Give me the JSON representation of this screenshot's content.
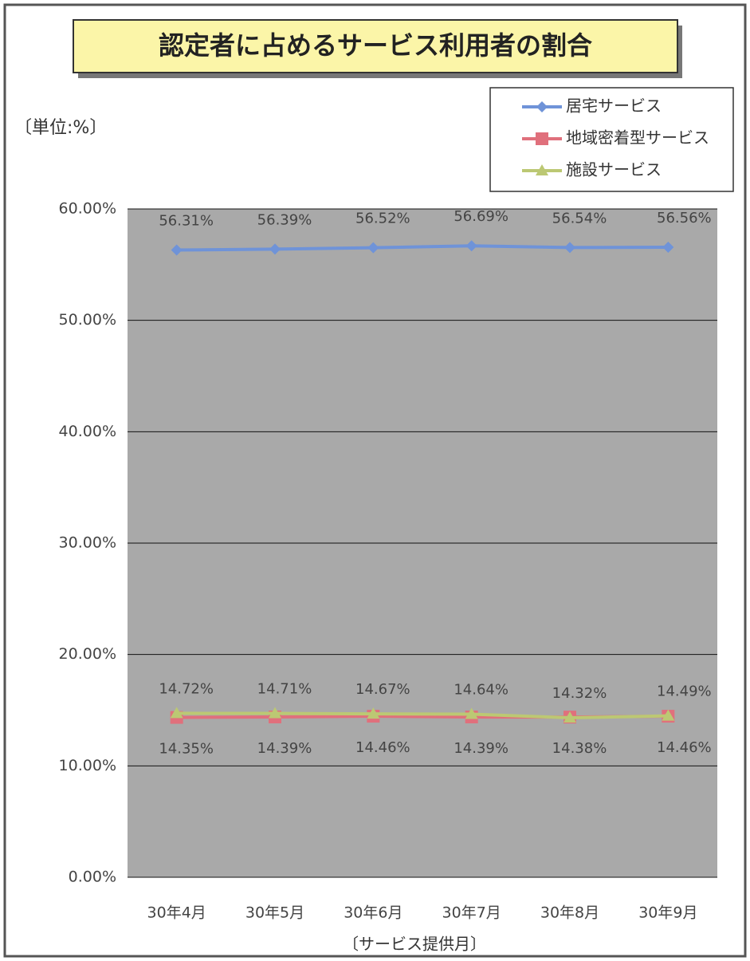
{
  "chart_data": {
    "type": "line",
    "title": "認定者に占めるサービス利用者の割合",
    "unit_label": "〔単位:%〕",
    "x_label": "〔サービス提供月〕",
    "categories": [
      "30年4月",
      "30年5月",
      "30年6月",
      "30年7月",
      "30年8月",
      "30年9月"
    ],
    "series": [
      {
        "name": "居宅サービス",
        "color": "#6f93d8",
        "marker": "diamond",
        "values": [
          56.31,
          56.39,
          56.52,
          56.69,
          56.54,
          56.56
        ],
        "value_labels": [
          "56.31%",
          "56.39%",
          "56.52%",
          "56.69%",
          "56.54%",
          "56.56%"
        ]
      },
      {
        "name": "地域密着型サービス",
        "color": "#e0707c",
        "marker": "square",
        "values": [
          14.35,
          14.39,
          14.46,
          14.39,
          14.38,
          14.46
        ],
        "value_labels": [
          "14.35%",
          "14.39%",
          "14.46%",
          "14.39%",
          "14.38%",
          "14.46%"
        ]
      },
      {
        "name": "施設サービス",
        "color": "#bcc873",
        "marker": "triangle",
        "values": [
          14.72,
          14.71,
          14.67,
          14.64,
          14.32,
          14.49
        ],
        "value_labels": [
          "14.72%",
          "14.71%",
          "14.67%",
          "14.64%",
          "14.32%",
          "14.49%"
        ]
      }
    ],
    "ylim": [
      0,
      60
    ],
    "yticks": [
      {
        "value": 0,
        "label": "0.00%"
      },
      {
        "value": 10,
        "label": "10.00%"
      },
      {
        "value": 20,
        "label": "20.00%"
      },
      {
        "value": 30,
        "label": "30.00%"
      },
      {
        "value": 40,
        "label": "40.00%"
      },
      {
        "value": 50,
        "label": "50.00%"
      },
      {
        "value": 60,
        "label": "60.00%"
      }
    ],
    "grid": true
  }
}
